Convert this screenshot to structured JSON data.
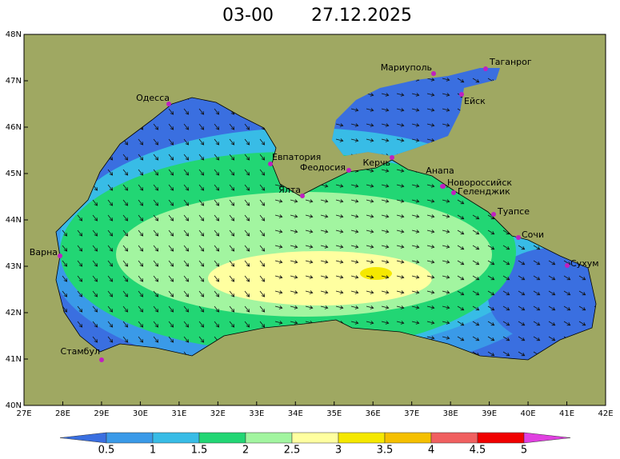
{
  "header": {
    "time": "03-00",
    "date": "27.12.2025"
  },
  "map": {
    "lon_ticks": [
      "27E",
      "28E",
      "29E",
      "30E",
      "31E",
      "32E",
      "33E",
      "34E",
      "35E",
      "36E",
      "37E",
      "38E",
      "39E",
      "40E",
      "41E",
      "42E"
    ],
    "lat_ticks": [
      "48N",
      "47N",
      "46N",
      "45N",
      "44N",
      "43N",
      "42N",
      "41N",
      "40N"
    ],
    "cities": [
      "Одесса",
      "Варна",
      "Стамбул",
      "Евпатория",
      "Феодосия",
      "Ялта",
      "Керчь",
      "Мариуполь",
      "Таганрог",
      "Ейск",
      "Анапа",
      "Новороссийск",
      "Геленджик",
      "Туапсе",
      "Сочи",
      "Сухум"
    ]
  },
  "colorbar": {
    "labels": [
      "0.5",
      "1",
      "1.5",
      "2",
      "2.5",
      "3",
      "3.5",
      "4",
      "4.5",
      "5"
    ]
  }
}
